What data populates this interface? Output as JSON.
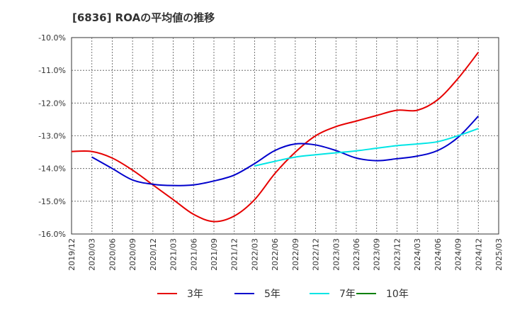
{
  "chart_data": {
    "type": "line",
    "title": "[6836]  ROAの平均値の推移",
    "xlabel": "",
    "ylabel": "",
    "x_ticks": [
      "2019/12",
      "2020/03",
      "2020/06",
      "2020/09",
      "2020/12",
      "2021/03",
      "2021/06",
      "2021/09",
      "2021/12",
      "2022/03",
      "2022/06",
      "2022/09",
      "2022/12",
      "2023/03",
      "2023/06",
      "2023/09",
      "2023/12",
      "2024/03",
      "2024/06",
      "2024/09",
      "2024/12",
      "2025/03"
    ],
    "y_ticks": [
      "-10.0%",
      "-11.0%",
      "-12.0%",
      "-13.0%",
      "-14.0%",
      "-15.0%",
      "-16.0%"
    ],
    "ylim": [
      -16.0,
      -10.0
    ],
    "grid": true,
    "legend_position": "bottom",
    "series": [
      {
        "name": "3年",
        "color": "#e60000",
        "points": [
          [
            "2019/12",
            -13.48
          ],
          [
            "2020/03",
            -13.48
          ],
          [
            "2020/06",
            -13.68
          ],
          [
            "2020/09",
            -14.05
          ],
          [
            "2020/12",
            -14.5
          ],
          [
            "2021/03",
            -14.95
          ],
          [
            "2021/06",
            -15.4
          ],
          [
            "2021/09",
            -15.62
          ],
          [
            "2021/12",
            -15.45
          ],
          [
            "2022/03",
            -14.95
          ],
          [
            "2022/06",
            -14.15
          ],
          [
            "2022/09",
            -13.5
          ],
          [
            "2022/12",
            -13.0
          ],
          [
            "2023/03",
            -12.72
          ],
          [
            "2023/06",
            -12.55
          ],
          [
            "2023/09",
            -12.38
          ],
          [
            "2023/12",
            -12.22
          ],
          [
            "2024/03",
            -12.22
          ],
          [
            "2024/06",
            -11.9
          ],
          [
            "2024/09",
            -11.25
          ],
          [
            "2024/12",
            -10.45
          ]
        ]
      },
      {
        "name": "5年",
        "color": "#0000cc",
        "points": [
          [
            "2020/03",
            -13.65
          ],
          [
            "2020/06",
            -14.0
          ],
          [
            "2020/09",
            -14.35
          ],
          [
            "2020/12",
            -14.48
          ],
          [
            "2021/03",
            -14.52
          ],
          [
            "2021/06",
            -14.5
          ],
          [
            "2021/09",
            -14.38
          ],
          [
            "2021/12",
            -14.2
          ],
          [
            "2022/03",
            -13.85
          ],
          [
            "2022/06",
            -13.45
          ],
          [
            "2022/09",
            -13.25
          ],
          [
            "2022/12",
            -13.28
          ],
          [
            "2023/03",
            -13.45
          ],
          [
            "2023/06",
            -13.68
          ],
          [
            "2023/09",
            -13.76
          ],
          [
            "2023/12",
            -13.7
          ],
          [
            "2024/03",
            -13.62
          ],
          [
            "2024/06",
            -13.45
          ],
          [
            "2024/09",
            -13.05
          ],
          [
            "2024/12",
            -12.4
          ]
        ]
      },
      {
        "name": "7年",
        "color": "#00e5e5",
        "points": [
          [
            "2022/03",
            -13.92
          ],
          [
            "2022/06",
            -13.78
          ],
          [
            "2022/09",
            -13.65
          ],
          [
            "2022/12",
            -13.58
          ],
          [
            "2023/03",
            -13.52
          ],
          [
            "2023/06",
            -13.46
          ],
          [
            "2023/09",
            -13.38
          ],
          [
            "2023/12",
            -13.3
          ],
          [
            "2024/03",
            -13.25
          ],
          [
            "2024/06",
            -13.18
          ],
          [
            "2024/09",
            -13.0
          ],
          [
            "2024/12",
            -12.78
          ]
        ]
      },
      {
        "name": "10年",
        "color": "#008000",
        "points": []
      }
    ]
  }
}
